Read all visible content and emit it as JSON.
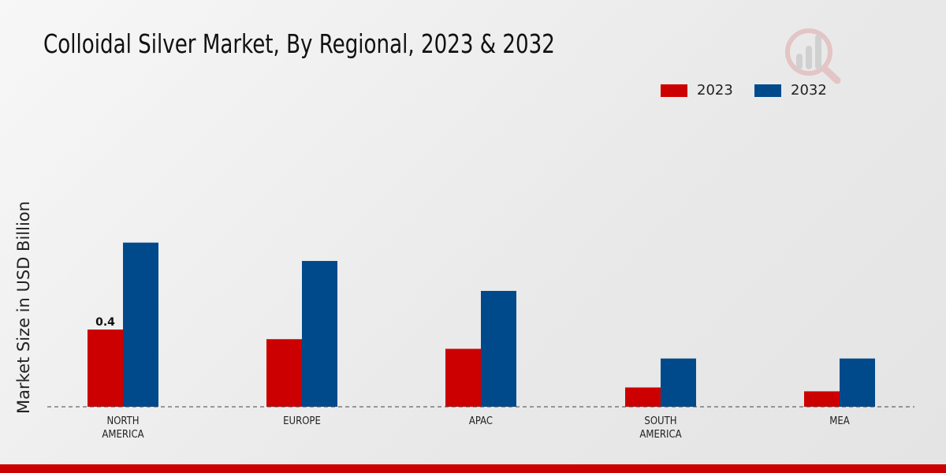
{
  "chart_data": {
    "type": "bar",
    "title": "Colloidal Silver Market, By Regional, 2023 & 2032",
    "xlabel": "",
    "ylabel": "Market Size in USD Billion",
    "categories": [
      "NORTH\nAMERICA",
      "EUROPE",
      "APAC",
      "SOUTH\nAMERICA",
      "MEA"
    ],
    "series": [
      {
        "name": "2023",
        "color": "#cc0000",
        "values": [
          0.4,
          0.35,
          0.3,
          0.1,
          0.08
        ]
      },
      {
        "name": "2032",
        "color": "#004a8c",
        "values": [
          0.85,
          0.755,
          0.6,
          0.25,
          0.25
        ]
      }
    ],
    "data_labels": [
      {
        "series": "2023",
        "category_index": 0,
        "text": "0.4"
      }
    ],
    "ylim": [
      0,
      1.0
    ],
    "grid": false,
    "legend_position": "top-right"
  }
}
